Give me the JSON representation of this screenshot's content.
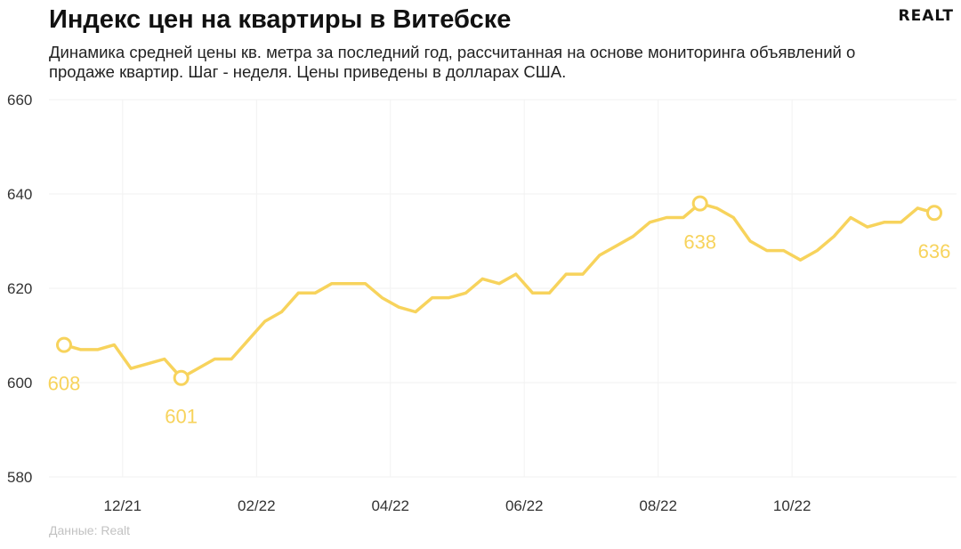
{
  "header": {
    "title": "Индекс цен на квартиры в Витебске",
    "subtitle": "Динамика средней цены кв. метра за последний год, рассчитанная на основе мониторинга объявлений о продаже квартир. Шаг - неделя. Цены приведены в долларах США.",
    "logo": "REALT"
  },
  "footer": {
    "source": "Данные: Realt"
  },
  "colors": {
    "line": "#f7d35c",
    "grid": "#f2f2f2",
    "text": "#333333"
  },
  "chart_data": {
    "type": "line",
    "title": "Индекс цен на квартиры в Витебске",
    "xlabel": "",
    "ylabel": "",
    "ylim": [
      580,
      660
    ],
    "yticks": [
      580,
      600,
      620,
      640,
      660
    ],
    "x_tick_labels": [
      "12/21",
      "02/22",
      "04/22",
      "06/22",
      "08/22",
      "10/22"
    ],
    "x_tick_index": [
      3.5,
      11.5,
      19.5,
      27.5,
      35.5,
      43.5
    ],
    "grid": true,
    "legend": "none",
    "values": [
      608,
      607,
      607,
      608,
      603,
      604,
      605,
      601,
      603,
      605,
      605,
      609,
      613,
      615,
      619,
      619,
      621,
      621,
      621,
      618,
      616,
      615,
      618,
      618,
      619,
      622,
      621,
      623,
      619,
      619,
      623,
      623,
      627,
      629,
      631,
      634,
      635,
      635,
      638,
      637,
      635,
      630,
      628,
      628,
      626,
      628,
      631,
      635,
      633,
      634,
      634,
      637,
      636
    ],
    "annotations": [
      {
        "index": 0,
        "value": 608,
        "label": "608"
      },
      {
        "index": 7,
        "value": 601,
        "label": "601"
      },
      {
        "index": 38,
        "value": 638,
        "label": "638"
      },
      {
        "index": 52,
        "value": 636,
        "label": "636"
      }
    ]
  }
}
